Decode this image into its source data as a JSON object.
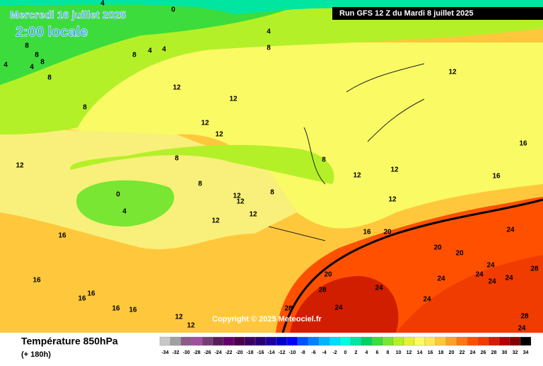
{
  "header": {
    "date": "Mercredi 16 juillet 2025",
    "time": "2:00 locale",
    "run": "Run GFS 12 Z du Mardi 8 juillet 2025"
  },
  "map": {
    "copyright": "Copyright © 2025 Meteociel.fr",
    "contour_labels": [
      4,
      0,
      4,
      8,
      8,
      8,
      8,
      4,
      4,
      8,
      8,
      4,
      4,
      8,
      12,
      12,
      12,
      12,
      8,
      12,
      8,
      0,
      4,
      12,
      12,
      12,
      8,
      8,
      12,
      12,
      12,
      16,
      12,
      12,
      16,
      16,
      16,
      20,
      20,
      20,
      24,
      24,
      24,
      24,
      24,
      28,
      28,
      28,
      24,
      20,
      24,
      24,
      24,
      16,
      16,
      16,
      12,
      12,
      16,
      16,
      28,
      24
    ]
  },
  "legend": {
    "title": "Température 850hPa",
    "subtitle": "(+ 180h)",
    "ticks": [
      -34,
      -32,
      -30,
      -28,
      -26,
      -24,
      -22,
      -20,
      -18,
      -16,
      -14,
      -12,
      -10,
      -8,
      -6,
      -4,
      -2,
      0,
      2,
      4,
      6,
      8,
      10,
      12,
      14,
      16,
      18,
      20,
      22,
      24,
      26,
      28,
      30,
      32,
      34
    ],
    "colors": [
      "#c8c8c8",
      "#a0a0a0",
      "#8c5a8c",
      "#a050a0",
      "#783c78",
      "#5a1e5a",
      "#64006e",
      "#4b004b",
      "#3c0064",
      "#280078",
      "#1e00a0",
      "#0000c8",
      "#0000ff",
      "#0050ff",
      "#0082ff",
      "#00b4ff",
      "#00dcff",
      "#00ffdc",
      "#00e6a0",
      "#00d264",
      "#3cdc3c",
      "#78e632",
      "#b4f028",
      "#e6f03c",
      "#fafa64",
      "#ffe65a",
      "#ffc83c",
      "#ffa028",
      "#ff7814",
      "#ff5000",
      "#f03c00",
      "#d21e00",
      "#b40000",
      "#820000",
      "#000000"
    ]
  }
}
